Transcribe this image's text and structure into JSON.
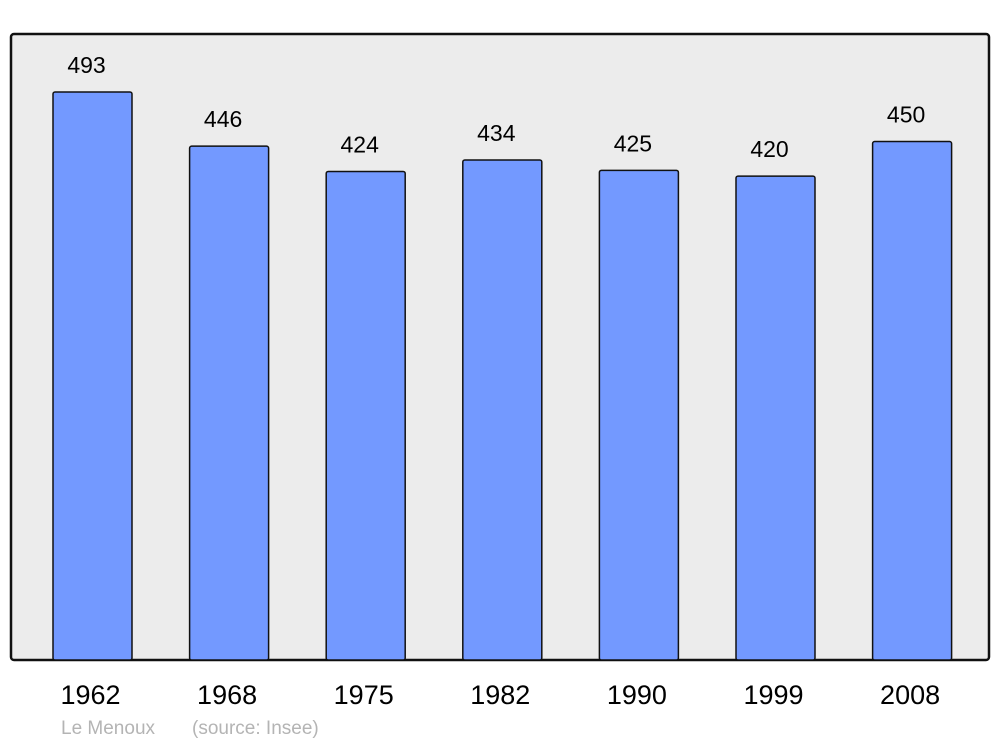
{
  "chart_data": {
    "type": "bar",
    "categories": [
      "1962",
      "1968",
      "1975",
      "1982",
      "1990",
      "1999",
      "2008"
    ],
    "values": [
      493,
      446,
      424,
      434,
      425,
      420,
      450
    ],
    "title": "",
    "xlabel": "",
    "ylabel": "",
    "ylim": [
      0,
      493
    ],
    "grid": false,
    "data_labels": true,
    "bar_color": "#7399ff",
    "plot_background": "#ececec"
  },
  "footer": {
    "place": "Le Menoux",
    "source": "(source: Insee)"
  }
}
